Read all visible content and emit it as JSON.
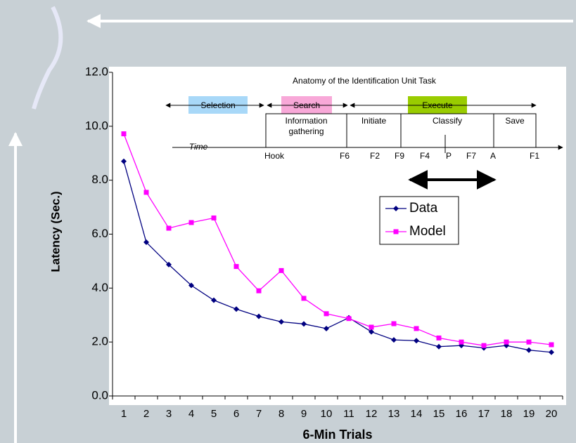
{
  "chart_data": {
    "type": "line",
    "y_axis_label": "Latency (Sec.)",
    "x_axis_label": "6-Min Trials",
    "categories": [
      "1",
      "2",
      "3",
      "4",
      "5",
      "6",
      "7",
      "8",
      "9",
      "10",
      "11",
      "12",
      "13",
      "14",
      "15",
      "16",
      "17",
      "18",
      "19",
      "20"
    ],
    "series": [
      {
        "name": "Data",
        "color": "#000080",
        "marker": "diamond",
        "values": [
          8.7,
          5.7,
          4.87,
          4.1,
          3.55,
          3.22,
          2.95,
          2.75,
          2.67,
          2.5,
          2.9,
          2.38,
          2.08,
          2.05,
          1.83,
          1.87,
          1.78,
          1.87,
          1.7,
          1.62
        ]
      },
      {
        "name": "Model",
        "color": "#ff00ff",
        "marker": "square",
        "values": [
          9.72,
          7.55,
          6.22,
          6.43,
          6.6,
          4.8,
          3.9,
          4.65,
          3.62,
          3.05,
          2.87,
          2.55,
          2.68,
          2.5,
          2.15,
          2.0,
          1.87,
          2.0,
          2.0,
          1.9
        ]
      }
    ],
    "ylim": [
      0,
      12
    ],
    "yticks": [
      {
        "value": 0,
        "label": "0.0"
      },
      {
        "value": 2,
        "label": "2.0"
      },
      {
        "value": 4,
        "label": "4.0"
      },
      {
        "value": 6,
        "label": "6.0"
      },
      {
        "value": 8,
        "label": "8.0"
      },
      {
        "value": 10,
        "label": "10.0"
      },
      {
        "value": 12,
        "label": "12.0"
      }
    ],
    "inset": {
      "title": "Anatomy of the Identification Unit Task",
      "phases": [
        {
          "label": "Selection",
          "color": "#a8d8f8"
        },
        {
          "label": "Search",
          "color": "#f8a8d8"
        },
        {
          "label": "Execute",
          "color": "#99cc00"
        }
      ],
      "steps": [
        [
          "Information",
          "gathering"
        ],
        [
          "Initiate"
        ],
        [
          "Classify"
        ],
        [
          "Save"
        ]
      ],
      "time_label": "Time",
      "events": [
        "Hook",
        "F6",
        "F2",
        "F9",
        "F4",
        "P",
        "F7",
        "A",
        "F1"
      ]
    }
  }
}
